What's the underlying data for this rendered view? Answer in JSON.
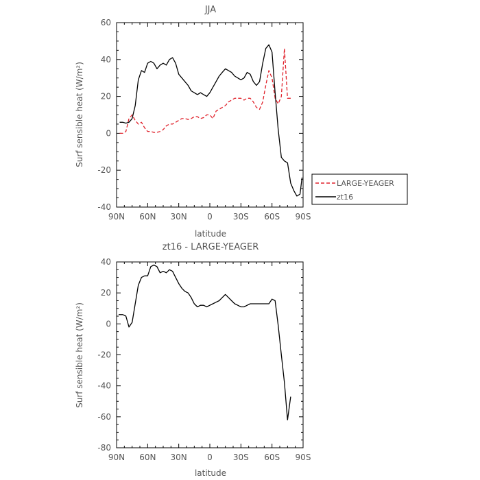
{
  "chart_data": [
    {
      "type": "line",
      "title": "JJA",
      "xlabel": "latitude",
      "ylabel": "Surf sensible heat (W/m²)",
      "xlim": [
        90,
        -90
      ],
      "ylim": [
        -40,
        60
      ],
      "x_ticks": [
        90,
        60,
        30,
        0,
        -30,
        -60,
        -90
      ],
      "x_tick_labels": [
        "90N",
        "60N",
        "30N",
        "0",
        "30S",
        "60S",
        "90S"
      ],
      "y_ticks": [
        -40,
        -20,
        0,
        20,
        40,
        60
      ],
      "legend": "right",
      "series": [
        {
          "name": "LARGE-YEAGER",
          "color": "#e0202a",
          "dash": "dashed",
          "x": [
            87,
            84,
            81,
            78,
            75,
            72,
            69,
            66,
            63,
            60,
            57,
            54,
            51,
            48,
            45,
            42,
            39,
            36,
            33,
            30,
            27,
            24,
            21,
            18,
            15,
            12,
            9,
            6,
            3,
            0,
            -3,
            -6,
            -9,
            -12,
            -15,
            -18,
            -21,
            -24,
            -27,
            -30,
            -33,
            -36,
            -39,
            -42,
            -45,
            -48,
            -51,
            -54,
            -57,
            -60,
            -63,
            -66,
            -69,
            -72,
            -75,
            -78
          ],
          "y": [
            0,
            0,
            1,
            8,
            10,
            7,
            5,
            6,
            3,
            1,
            1,
            0.5,
            0.5,
            1,
            2,
            4,
            5,
            5,
            6,
            7,
            8,
            8,
            7.5,
            8,
            9,
            9,
            8,
            8.5,
            10,
            10,
            8,
            12,
            13,
            14,
            15,
            17,
            18,
            19,
            19,
            19,
            18,
            19,
            19,
            17,
            14,
            13,
            17,
            26,
            34,
            30,
            19,
            16,
            20,
            46,
            19,
            19
          ]
        },
        {
          "name": "zt16",
          "color": "#000000",
          "dash": "solid",
          "x": [
            87,
            84,
            81,
            78,
            75,
            72,
            69,
            66,
            63,
            60,
            57,
            54,
            51,
            48,
            45,
            42,
            39,
            36,
            33,
            30,
            27,
            24,
            21,
            18,
            15,
            12,
            9,
            6,
            3,
            0,
            -3,
            -6,
            -9,
            -12,
            -15,
            -18,
            -21,
            -24,
            -27,
            -30,
            -33,
            -36,
            -39,
            -42,
            -45,
            -48,
            -51,
            -54,
            -57,
            -60,
            -63,
            -66,
            -69,
            -72,
            -75,
            -78,
            -81,
            -84,
            -87,
            -89
          ],
          "y": [
            6,
            6,
            5.5,
            6,
            8,
            15,
            29,
            34,
            33,
            38,
            39,
            38,
            35,
            37,
            38,
            37,
            40,
            41,
            38,
            32,
            30,
            28,
            26,
            23,
            22,
            21,
            22,
            21,
            20,
            22,
            25,
            28,
            31,
            33,
            35,
            34,
            33,
            31,
            30,
            29,
            30,
            33,
            32,
            28,
            26,
            28,
            38,
            46,
            48,
            44,
            22,
            2,
            -13,
            -15,
            -16,
            -27,
            -31,
            -34,
            -33,
            -24
          ]
        }
      ]
    },
    {
      "type": "line",
      "title": "zt16 - LARGE-YEAGER",
      "xlabel": "latitude",
      "ylabel": "Surf sensible heat (W/m²)",
      "xlim": [
        90,
        -90
      ],
      "ylim": [
        -80,
        40
      ],
      "x_ticks": [
        90,
        60,
        30,
        0,
        -30,
        -60,
        -90
      ],
      "x_tick_labels": [
        "90N",
        "60N",
        "30N",
        "0",
        "30S",
        "60S",
        "90S"
      ],
      "y_ticks": [
        -80,
        -60,
        -40,
        -20,
        0,
        20,
        40
      ],
      "series": [
        {
          "name": "",
          "color": "#000000",
          "dash": "solid",
          "x": [
            88,
            84,
            81,
            78,
            75,
            72,
            69,
            66,
            63,
            60,
            57,
            54,
            51,
            48,
            45,
            42,
            39,
            36,
            33,
            30,
            27,
            24,
            21,
            18,
            15,
            12,
            9,
            6,
            3,
            0,
            -3,
            -6,
            -9,
            -12,
            -15,
            -18,
            -21,
            -24,
            -27,
            -30,
            -33,
            -36,
            -39,
            -42,
            -45,
            -48,
            -51,
            -54,
            -57,
            -60,
            -63,
            -66,
            -69,
            -72,
            -75,
            -78
          ],
          "y": [
            6,
            6,
            5,
            -2,
            1,
            13,
            25,
            30,
            31,
            31,
            37,
            38,
            37,
            33,
            34,
            33,
            35,
            34,
            30,
            26,
            23,
            21,
            20,
            17,
            13,
            11,
            12,
            12,
            11,
            12,
            13,
            14,
            15,
            17,
            19,
            17,
            15,
            13,
            12,
            11,
            11,
            12,
            13,
            13,
            13,
            13,
            13,
            13,
            13,
            16,
            15,
            -1,
            -20,
            -38,
            -62,
            -47
          ]
        }
      ]
    }
  ]
}
